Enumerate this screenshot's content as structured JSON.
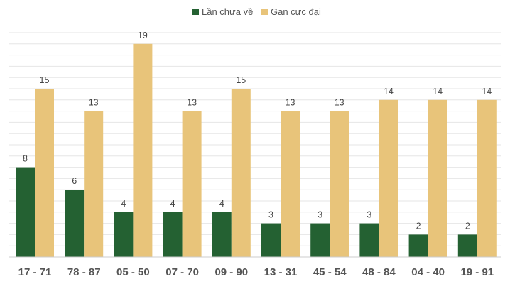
{
  "chart_data": {
    "type": "bar",
    "title": "",
    "xlabel": "",
    "ylabel": "",
    "ylim": [
      0,
      20
    ],
    "grid": true,
    "legend_position": "top-center",
    "categories": [
      "17 - 71",
      "78 - 87",
      "05 - 50",
      "07 - 70",
      "09 - 90",
      "13 - 31",
      "45 - 54",
      "48 - 84",
      "04 - 40",
      "19 - 91"
    ],
    "series": [
      {
        "name": "Lần chưa về",
        "color": "#246132",
        "values": [
          8,
          6,
          4,
          4,
          4,
          3,
          3,
          3,
          2,
          2
        ]
      },
      {
        "name": "Gan cực đại",
        "color": "#e8c47a",
        "values": [
          15,
          13,
          19,
          13,
          15,
          13,
          13,
          14,
          14,
          14
        ]
      }
    ]
  }
}
